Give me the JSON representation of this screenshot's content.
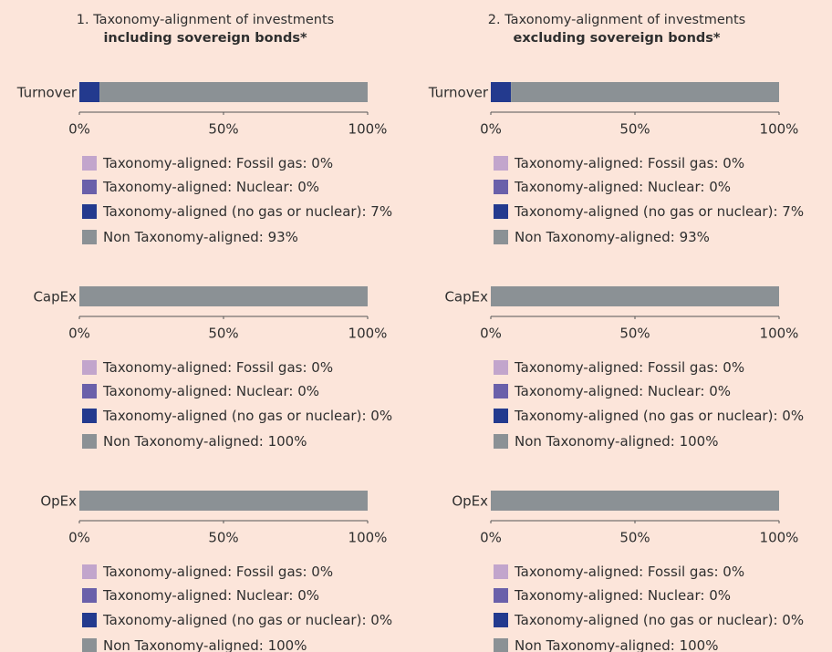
{
  "chart_data": [
    {
      "type": "bar",
      "orientation": "horizontal",
      "stacked": true,
      "title": "1. Taxonomy-alignment of investments",
      "subtitle": "including sovereign bonds*",
      "categories": [
        "Turnover"
      ],
      "xlim": [
        0,
        100
      ],
      "xticks": [
        {
          "value": 0,
          "label": "0%"
        },
        {
          "value": 50,
          "label": "50%"
        },
        {
          "value": 100,
          "label": "100%"
        }
      ],
      "series": [
        {
          "name": "Taxonomy-aligned: Fossil gas",
          "color": "#c2a5cc",
          "values": [
            0
          ],
          "value_labels": [
            "0%"
          ]
        },
        {
          "name": "Taxonomy-aligned: Nuclear",
          "color": "#6a60aa",
          "values": [
            0
          ],
          "value_labels": [
            "0%"
          ]
        },
        {
          "name": "Taxonomy-aligned (no gas or nuclear)",
          "color": "#233a8e",
          "values": [
            7
          ],
          "value_labels": [
            "7%"
          ]
        },
        {
          "name": "Non Taxonomy-aligned",
          "color": "#8b9195",
          "values": [
            93
          ],
          "value_labels": [
            "93%"
          ]
        }
      ]
    },
    {
      "type": "bar",
      "orientation": "horizontal",
      "stacked": true,
      "categories": [
        "CapEx"
      ],
      "xlim": [
        0,
        100
      ],
      "xticks": [
        {
          "value": 0,
          "label": "0%"
        },
        {
          "value": 50,
          "label": "50%"
        },
        {
          "value": 100,
          "label": "100%"
        }
      ],
      "series": [
        {
          "name": "Taxonomy-aligned: Fossil gas",
          "color": "#c2a5cc",
          "values": [
            0
          ],
          "value_labels": [
            "0%"
          ]
        },
        {
          "name": "Taxonomy-aligned: Nuclear",
          "color": "#6a60aa",
          "values": [
            0
          ],
          "value_labels": [
            "0%"
          ]
        },
        {
          "name": "Taxonomy-aligned (no gas or nuclear)",
          "color": "#233a8e",
          "values": [
            0
          ],
          "value_labels": [
            "0%"
          ]
        },
        {
          "name": "Non Taxonomy-aligned",
          "color": "#8b9195",
          "values": [
            100
          ],
          "value_labels": [
            "100%"
          ]
        }
      ]
    },
    {
      "type": "bar",
      "orientation": "horizontal",
      "stacked": true,
      "categories": [
        "OpEx"
      ],
      "xlim": [
        0,
        100
      ],
      "xticks": [
        {
          "value": 0,
          "label": "0%"
        },
        {
          "value": 50,
          "label": "50%"
        },
        {
          "value": 100,
          "label": "100%"
        }
      ],
      "series": [
        {
          "name": "Taxonomy-aligned: Fossil gas",
          "color": "#c2a5cc",
          "values": [
            0
          ],
          "value_labels": [
            "0%"
          ]
        },
        {
          "name": "Taxonomy-aligned: Nuclear",
          "color": "#6a60aa",
          "values": [
            0
          ],
          "value_labels": [
            "0%"
          ]
        },
        {
          "name": "Taxonomy-aligned (no gas or nuclear)",
          "color": "#233a8e",
          "values": [
            0
          ],
          "value_labels": [
            "0%"
          ]
        },
        {
          "name": "Non Taxonomy-aligned",
          "color": "#8b9195",
          "values": [
            100
          ],
          "value_labels": [
            "100%"
          ]
        }
      ]
    },
    {
      "type": "bar",
      "orientation": "horizontal",
      "stacked": true,
      "title": "2. Taxonomy-alignment of investments",
      "subtitle": "excluding sovereign bonds*",
      "categories": [
        "Turnover"
      ],
      "xlim": [
        0,
        100
      ],
      "xticks": [
        {
          "value": 0,
          "label": "0%"
        },
        {
          "value": 50,
          "label": "50%"
        },
        {
          "value": 100,
          "label": "100%"
        }
      ],
      "series": [
        {
          "name": "Taxonomy-aligned: Fossil gas",
          "color": "#c2a5cc",
          "values": [
            0
          ],
          "value_labels": [
            "0%"
          ]
        },
        {
          "name": "Taxonomy-aligned: Nuclear",
          "color": "#6a60aa",
          "values": [
            0
          ],
          "value_labels": [
            "0%"
          ]
        },
        {
          "name": "Taxonomy-aligned (no gas or nuclear)",
          "color": "#233a8e",
          "values": [
            7
          ],
          "value_labels": [
            "7%"
          ]
        },
        {
          "name": "Non Taxonomy-aligned",
          "color": "#8b9195",
          "values": [
            93
          ],
          "value_labels": [
            "93%"
          ]
        }
      ]
    },
    {
      "type": "bar",
      "orientation": "horizontal",
      "stacked": true,
      "categories": [
        "CapEx"
      ],
      "xlim": [
        0,
        100
      ],
      "xticks": [
        {
          "value": 0,
          "label": "0%"
        },
        {
          "value": 50,
          "label": "50%"
        },
        {
          "value": 100,
          "label": "100%"
        }
      ],
      "series": [
        {
          "name": "Taxonomy-aligned: Fossil gas",
          "color": "#c2a5cc",
          "values": [
            0
          ],
          "value_labels": [
            "0%"
          ]
        },
        {
          "name": "Taxonomy-aligned: Nuclear",
          "color": "#6a60aa",
          "values": [
            0
          ],
          "value_labels": [
            "0%"
          ]
        },
        {
          "name": "Taxonomy-aligned (no gas or nuclear)",
          "color": "#233a8e",
          "values": [
            0
          ],
          "value_labels": [
            "0%"
          ]
        },
        {
          "name": "Non Taxonomy-aligned",
          "color": "#8b9195",
          "values": [
            100
          ],
          "value_labels": [
            "100%"
          ]
        }
      ]
    },
    {
      "type": "bar",
      "orientation": "horizontal",
      "stacked": true,
      "categories": [
        "OpEx"
      ],
      "xlim": [
        0,
        100
      ],
      "xticks": [
        {
          "value": 0,
          "label": "0%"
        },
        {
          "value": 50,
          "label": "50%"
        },
        {
          "value": 100,
          "label": "100%"
        }
      ],
      "series": [
        {
          "name": "Taxonomy-aligned: Fossil gas",
          "color": "#c2a5cc",
          "values": [
            0
          ],
          "value_labels": [
            "0%"
          ]
        },
        {
          "name": "Taxonomy-aligned: Nuclear",
          "color": "#6a60aa",
          "values": [
            0
          ],
          "value_labels": [
            "0%"
          ]
        },
        {
          "name": "Taxonomy-aligned (no gas or nuclear)",
          "color": "#233a8e",
          "values": [
            0
          ],
          "value_labels": [
            "0%"
          ]
        },
        {
          "name": "Non Taxonomy-aligned",
          "color": "#8b9195",
          "values": [
            100
          ],
          "value_labels": [
            "100%"
          ]
        }
      ]
    }
  ]
}
